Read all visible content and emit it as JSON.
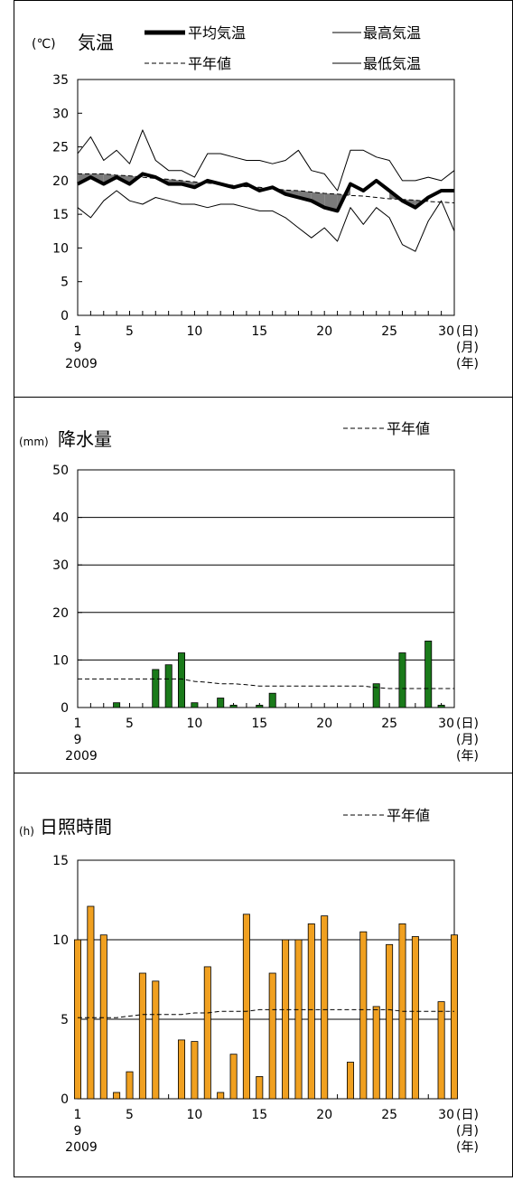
{
  "chart_data": [
    {
      "type": "line",
      "title": "気温",
      "unit": "(℃)",
      "legend": [
        {
          "label": "平均気温",
          "style": "thick"
        },
        {
          "label": "最高気温",
          "style": "thin"
        },
        {
          "label": "平年値",
          "style": "dashed"
        },
        {
          "label": "最低気温",
          "style": "thin"
        }
      ],
      "ylim": [
        0,
        35
      ],
      "yticks": [
        0,
        5,
        10,
        15,
        20,
        25,
        30,
        35
      ],
      "xlim": [
        1,
        30
      ],
      "xticks": [
        1,
        5,
        10,
        15,
        20,
        25,
        30
      ],
      "x_suffix": [
        "(日)",
        "(月)",
        "(年)"
      ],
      "month": "9",
      "year": "2009",
      "grid": false,
      "x": [
        1,
        2,
        3,
        4,
        5,
        6,
        7,
        8,
        9,
        10,
        11,
        12,
        13,
        14,
        15,
        16,
        17,
        18,
        19,
        20,
        21,
        22,
        23,
        24,
        25,
        26,
        27,
        28,
        29,
        30
      ],
      "series": [
        {
          "name": "最高気温",
          "values": [
            24,
            26.5,
            23,
            24.5,
            22.5,
            27.5,
            23,
            21.5,
            21.5,
            20.5,
            24,
            24,
            23.5,
            23,
            23,
            22.5,
            23,
            24.5,
            21.5,
            21,
            18.5,
            24.5,
            24.5,
            23.5,
            23,
            20,
            20,
            20.5,
            20,
            21.5
          ]
        },
        {
          "name": "平均気温",
          "values": [
            19.5,
            20.5,
            19.5,
            20.5,
            19.5,
            21,
            20.5,
            19.5,
            19.5,
            19,
            20,
            19.5,
            19,
            19.5,
            18.5,
            19,
            18,
            17.5,
            17,
            16,
            15.5,
            19.5,
            18.5,
            20,
            18.5,
            17,
            16,
            17.5,
            18.5,
            18.5
          ]
        },
        {
          "name": "最低気温",
          "values": [
            16,
            14.5,
            17,
            18.5,
            17,
            16.5,
            17.5,
            17,
            16.5,
            16.5,
            16,
            16.5,
            16.5,
            16,
            15.5,
            15.5,
            14.5,
            13,
            11.5,
            13,
            11,
            16,
            13.5,
            16,
            14.5,
            10.5,
            9.5,
            14,
            17,
            12.5
          ]
        },
        {
          "name": "平年値",
          "values": [
            21,
            21,
            21,
            20.8,
            20.7,
            20.5,
            20.3,
            20.2,
            20,
            19.8,
            19.6,
            19.5,
            19.3,
            19.1,
            19,
            18.8,
            18.6,
            18.5,
            18.3,
            18.1,
            18,
            17.8,
            17.7,
            17.5,
            17.3,
            17.2,
            17.1,
            16.9,
            16.8,
            16.7
          ]
        }
      ]
    },
    {
      "type": "bar",
      "title": "降水量",
      "unit": "(mm)",
      "legend": [
        {
          "label": "平年値",
          "style": "dashed"
        }
      ],
      "ylim": [
        0,
        50
      ],
      "yticks": [
        0,
        10,
        20,
        30,
        40,
        50
      ],
      "gridlines": [
        10,
        20,
        30,
        40
      ],
      "xlim": [
        1,
        30
      ],
      "xticks": [
        1,
        5,
        10,
        15,
        20,
        25,
        30
      ],
      "x_suffix": [
        "(日)",
        "(月)",
        "(年)"
      ],
      "month": "9",
      "year": "2009",
      "bar_color": "#1a7a1a",
      "x": [
        1,
        2,
        3,
        4,
        5,
        6,
        7,
        8,
        9,
        10,
        11,
        12,
        13,
        14,
        15,
        16,
        17,
        18,
        19,
        20,
        21,
        22,
        23,
        24,
        25,
        26,
        27,
        28,
        29,
        30
      ],
      "values": [
        0,
        0,
        0,
        1,
        0,
        0,
        8,
        9,
        11.5,
        1,
        0,
        2,
        0.5,
        0,
        0.5,
        3,
        0,
        0,
        0,
        0,
        0,
        0,
        0,
        5,
        0,
        11.5,
        0,
        14,
        0.5,
        0
      ],
      "normal": [
        6,
        6,
        6,
        6,
        6,
        6,
        6,
        6,
        6,
        5.5,
        5.3,
        5,
        5,
        4.8,
        4.5,
        4.5,
        4.5,
        4.5,
        4.5,
        4.5,
        4.5,
        4.5,
        4.5,
        4.2,
        4,
        4,
        4,
        4,
        4,
        4
      ]
    },
    {
      "type": "bar",
      "title": "日照時間",
      "unit": "(h)",
      "legend": [
        {
          "label": "平年値",
          "style": "dashed"
        }
      ],
      "ylim": [
        0,
        15
      ],
      "yticks": [
        0,
        5,
        10,
        15
      ],
      "gridlines": [
        5,
        10
      ],
      "xlim": [
        1,
        30
      ],
      "xticks": [
        1,
        5,
        10,
        15,
        20,
        25,
        30
      ],
      "x_suffix": [
        "(日)",
        "(月)",
        "(年)"
      ],
      "month": "9",
      "year": "2009",
      "bar_color": "#f0a020",
      "x": [
        1,
        2,
        3,
        4,
        5,
        6,
        7,
        8,
        9,
        10,
        11,
        12,
        13,
        14,
        15,
        16,
        17,
        18,
        19,
        20,
        21,
        22,
        23,
        24,
        25,
        26,
        27,
        28,
        29,
        30
      ],
      "values": [
        10,
        12.1,
        10.3,
        0.4,
        1.7,
        7.9,
        7.4,
        0,
        3.7,
        3.6,
        8.3,
        0.4,
        2.8,
        11.6,
        1.4,
        7.9,
        10,
        10,
        11,
        11.5,
        0,
        2.3,
        10.5,
        5.8,
        9.7,
        11,
        10.2,
        0,
        6.1,
        10.3
      ],
      "normal": [
        5.1,
        5.1,
        5.1,
        5.1,
        5.2,
        5.3,
        5.3,
        5.3,
        5.3,
        5.4,
        5.4,
        5.5,
        5.5,
        5.5,
        5.6,
        5.6,
        5.6,
        5.6,
        5.6,
        5.6,
        5.6,
        5.6,
        5.6,
        5.6,
        5.6,
        5.5,
        5.5,
        5.5,
        5.5,
        5.5
      ]
    }
  ]
}
